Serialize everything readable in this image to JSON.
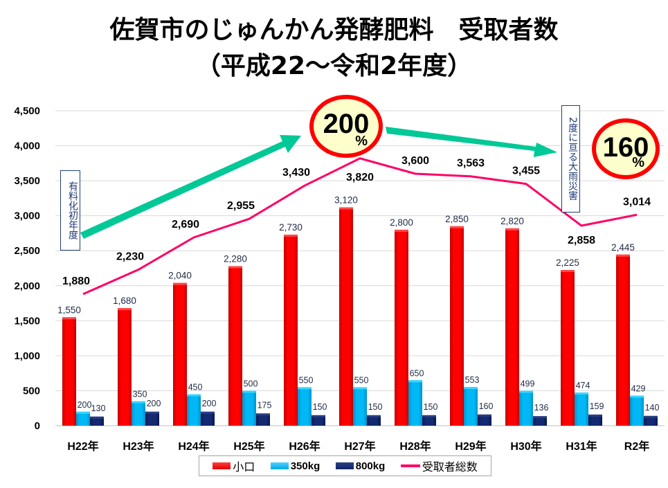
{
  "chart_data": {
    "type": "bar",
    "title": "佐賀市のじゅんかん発酵肥料　受取者数",
    "subtitle": "（平成22～令和2年度）",
    "xlabel": "",
    "ylabel": "",
    "ylim": [
      0,
      4500
    ],
    "yticks": [
      "0",
      "500",
      "1,000",
      "1,500",
      "2,000",
      "2,500",
      "3,000",
      "3,500",
      "4,000",
      "4,500"
    ],
    "ytick_values": [
      0,
      500,
      1000,
      1500,
      2000,
      2500,
      3000,
      3500,
      4000,
      4500
    ],
    "grid": true,
    "legend_position": "bottom",
    "categories": [
      "H22年",
      "H23年",
      "H24年",
      "H25年",
      "H26年",
      "H27年",
      "H28年",
      "H29年",
      "H30年",
      "H31年",
      "R2年"
    ],
    "series": [
      {
        "name": "小口",
        "type": "bar",
        "color": "#ff0000",
        "values": [
          1550,
          1680,
          2040,
          2280,
          2730,
          3120,
          2800,
          2850,
          2820,
          2225,
          2445
        ],
        "labels": [
          "1,550",
          "1,680",
          "2,040",
          "2,280",
          "2,730",
          "3,120",
          "2,800",
          "2,850",
          "2,820",
          "2,225",
          "2,445"
        ]
      },
      {
        "name": "350kg",
        "type": "bar",
        "color": "#00b0f0",
        "values": [
          200,
          350,
          450,
          500,
          550,
          550,
          650,
          553,
          499,
          474,
          429
        ],
        "labels": [
          "200",
          "350",
          "450",
          "500",
          "550",
          "550",
          "650",
          "553",
          "499",
          "474",
          "429"
        ]
      },
      {
        "name": "800kg",
        "type": "bar",
        "color": "#0f2467",
        "values": [
          130,
          200,
          200,
          175,
          150,
          150,
          150,
          160,
          136,
          159,
          140
        ],
        "labels": [
          "130",
          "200",
          "200",
          "175",
          "150",
          "150",
          "150",
          "160",
          "136",
          "159",
          "140"
        ]
      },
      {
        "name": "受取者総数",
        "type": "line",
        "color": "#ff0066",
        "values": [
          1880,
          2230,
          2690,
          2955,
          3430,
          3820,
          3600,
          3563,
          3455,
          2858,
          3014
        ],
        "labels": [
          "1,880",
          "2,230",
          "2,690",
          "2,955",
          "3,430",
          "3,820",
          "3,600",
          "3,563",
          "3,455",
          "2,858",
          "3,014"
        ]
      }
    ],
    "annotations": [
      {
        "text": "有料化初年度",
        "type": "note-box",
        "near": "H22年"
      },
      {
        "text": "2度に亘る大雨災害",
        "type": "note-box",
        "near": "H30年-H31年"
      },
      {
        "text": "200",
        "suffix": "%",
        "type": "badge",
        "near": "H27年"
      },
      {
        "text": "160",
        "suffix": "%",
        "type": "badge",
        "near": "R2年"
      },
      {
        "type": "arrow",
        "direction": "up",
        "from": "H22年",
        "to": "H27年"
      },
      {
        "type": "arrow",
        "direction": "down",
        "from": "H27年",
        "to": "H30年"
      }
    ]
  },
  "header": {
    "line1": "佐賀市のじゅんかん発酵肥料　受取者数",
    "line2": "（平成22～令和2年度）"
  },
  "notes": {
    "first_paid_year": "有料化初年度",
    "heavy_rain": "2度に亘る大雨災害"
  },
  "badges": {
    "peak": {
      "value": "200",
      "unit": "%"
    },
    "latest": {
      "value": "160",
      "unit": "%"
    }
  },
  "legend": {
    "items": [
      "小口",
      "350kg",
      "800kg",
      "受取者総数"
    ]
  },
  "colors": {
    "small": "#ff0000",
    "kg350": "#00b0f0",
    "kg800": "#0f2467",
    "total": "#ff0066",
    "arrow": "#00c896",
    "badge_ring": "#ff0000",
    "badge_fill": "#ffffcc"
  }
}
